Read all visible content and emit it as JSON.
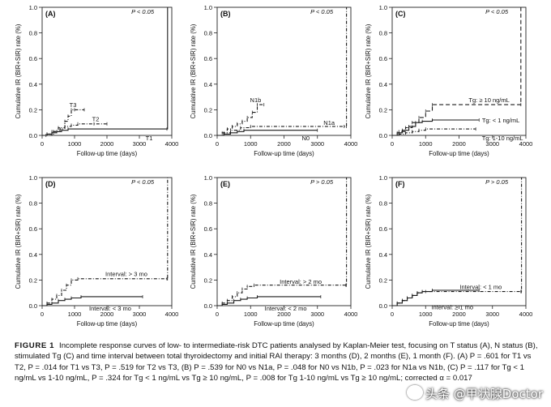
{
  "figure": {
    "caption_label": "FIGURE 1",
    "caption_text": "Incomplete response curves of low- to intermediate-risk DTC patients analysed by Kaplan-Meier test, focusing on T status (A), N status (B), stimulated Tg (C) and time interval between total thyroidectomy and initial RAI therapy: 3 months (D), 2 months (E), 1 month (F). (A) P = .601 for T1 vs T2, P = .014 for T1 vs T3, P = .519 for T2 vs T3, (B) P = .539 for N0 vs N1a, P = .048 for N0 vs N1b, P = .023 for N1a vs N1b, (C) P = .117 for Tg < 1 ng/mL vs 1-10 ng/mL, P = .324 for Tg < 1 ng/mL vs Tg ≥ 10 ng/mL, P = .008 for Tg 1-10 ng/mL vs Tg ≥ 10 ng/mL; corrected α = 0.017",
    "watermark": "头条 @甲状腺Doctor"
  },
  "chart_data": [
    {
      "type": "line",
      "panel": "(A)",
      "pvalue": "P < 0.05",
      "xlabel": "Follow-up time (days)",
      "ylabel": "Cumulative IR (BIR+SIR) rate (%)",
      "xlim": [
        0,
        4000
      ],
      "ylim": [
        0,
        1.0
      ],
      "xticks": [
        "0",
        "1000",
        "2000",
        "3000",
        "4000"
      ],
      "yticks": [
        "0.0",
        "0.2",
        "0.4",
        "0.6",
        "0.8",
        "1.0"
      ],
      "series": [
        {
          "name": "T3",
          "style": "dash-dot",
          "label_at": [
            950,
            0.24
          ],
          "x": [
            0,
            120,
            300,
            500,
            700,
            800,
            900,
            1000,
            1300
          ],
          "y": [
            0,
            0,
            0.03,
            0.06,
            0.11,
            0.15,
            0.2,
            0.2,
            0.2
          ]
        },
        {
          "name": "T2",
          "style": "dash-dot",
          "label_at": [
            1650,
            0.13
          ],
          "x": [
            0,
            150,
            350,
            550,
            700,
            900,
            1100,
            1600,
            2000
          ],
          "y": [
            0,
            0.01,
            0.03,
            0.05,
            0.07,
            0.08,
            0.09,
            0.09,
            0.09
          ]
        },
        {
          "name": "T1",
          "style": "solid",
          "label_at": [
            3300,
            -0.02
          ],
          "x": [
            0,
            150,
            300,
            450,
            600,
            800,
            3850,
            3870
          ],
          "y": [
            0,
            0.01,
            0.02,
            0.03,
            0.04,
            0.05,
            0.05,
            1.0
          ]
        }
      ]
    },
    {
      "type": "line",
      "panel": "(B)",
      "pvalue": "P < 0.05",
      "xlabel": "Follow-up time (days)",
      "ylabel": "Cumulative IR (BIR+SIR) rate (%)",
      "xlim": [
        0,
        4000
      ],
      "ylim": [
        0,
        1.0
      ],
      "xticks": [
        "0",
        "1000",
        "2000",
        "3000",
        "4000"
      ],
      "yticks": [
        "0.0",
        "0.2",
        "0.4",
        "0.6",
        "0.8",
        "1.0"
      ],
      "series": [
        {
          "name": "N1b",
          "style": "dash-dot",
          "label_at": [
            1150,
            0.28
          ],
          "x": [
            0,
            150,
            300,
            450,
            600,
            750,
            900,
            1050,
            1200,
            1400
          ],
          "y": [
            0,
            0.02,
            0.05,
            0.07,
            0.09,
            0.11,
            0.14,
            0.18,
            0.24,
            0.24
          ]
        },
        {
          "name": "N1a",
          "style": "dash-dot",
          "label_at": [
            3350,
            0.1
          ],
          "x": [
            0,
            200,
            400,
            700,
            1000,
            3800,
            3870,
            3870
          ],
          "y": [
            0,
            0.02,
            0.04,
            0.06,
            0.07,
            0.07,
            0.07,
            1.0
          ]
        },
        {
          "name": "N0",
          "style": "solid",
          "label_at": [
            2650,
            -0.02
          ],
          "x": [
            0,
            200,
            400,
            600,
            800,
            3000
          ],
          "y": [
            0,
            0.01,
            0.02,
            0.03,
            0.04,
            0.04
          ]
        }
      ]
    },
    {
      "type": "line",
      "panel": "(C)",
      "pvalue": "P < 0.05",
      "xlabel": "Follow-up time (days)",
      "ylabel": "Cumulative IR (BIR+SIR) rate (%)",
      "xlim": [
        0,
        4000
      ],
      "ylim": [
        0,
        1.0
      ],
      "xticks": [
        "0",
        "1000",
        "2000",
        "3000",
        "4000"
      ],
      "yticks": [
        "0.0",
        "0.2",
        "0.4",
        "0.6",
        "0.8",
        "1.0"
      ],
      "series": [
        {
          "name": "Tg: ≥ 10 ng/mL",
          "style": "dashed",
          "label_at": [
            2900,
            0.28
          ],
          "x": [
            0,
            200,
            400,
            600,
            800,
            1000,
            1200,
            3850,
            3850
          ],
          "y": [
            0,
            0.03,
            0.06,
            0.1,
            0.14,
            0.19,
            0.24,
            0.24,
            1.0
          ]
        },
        {
          "name": "Tg: < 1 ng/mL",
          "style": "solid",
          "label_at": [
            3250,
            0.12
          ],
          "x": [
            0,
            150,
            300,
            500,
            700,
            900,
            1200,
            2600
          ],
          "y": [
            0,
            0.02,
            0.04,
            0.07,
            0.1,
            0.11,
            0.12,
            0.12
          ]
        },
        {
          "name": "Tg: 1-10 ng/mL",
          "style": "dash-dot",
          "label_at": [
            3300,
            -0.02
          ],
          "x": [
            0,
            200,
            400,
            600,
            800,
            1000,
            2500
          ],
          "y": [
            0,
            0.01,
            0.02,
            0.03,
            0.04,
            0.05,
            0.05
          ]
        }
      ]
    },
    {
      "type": "line",
      "panel": "(D)",
      "pvalue": "P < 0.05",
      "xlabel": "Follow-up time (days)",
      "ylabel": "Cumulative IR (BIR+SIR) rate (%)",
      "xlim": [
        0,
        4000
      ],
      "ylim": [
        0,
        1.0
      ],
      "xticks": [
        "0",
        "1000",
        "2000",
        "3000",
        "4000"
      ],
      "yticks": [
        "0.0",
        "0.2",
        "0.4",
        "0.6",
        "0.8",
        "1.0"
      ],
      "series": [
        {
          "name": "Interval: > 3 mo",
          "style": "dash-dot",
          "label_at": [
            2600,
            0.25
          ],
          "x": [
            0,
            150,
            300,
            450,
            600,
            750,
            900,
            1100,
            3850,
            3870,
            3870
          ],
          "y": [
            0,
            0.02,
            0.05,
            0.08,
            0.12,
            0.16,
            0.2,
            0.21,
            0.21,
            0.21,
            1.0
          ]
        },
        {
          "name": "Interval: < 3 mo",
          "style": "solid",
          "label_at": [
            2100,
            -0.02
          ],
          "x": [
            0,
            150,
            300,
            500,
            700,
            900,
            1200,
            3100
          ],
          "y": [
            0,
            0.01,
            0.02,
            0.04,
            0.05,
            0.06,
            0.07,
            0.07
          ]
        }
      ]
    },
    {
      "type": "line",
      "panel": "(E)",
      "pvalue": "P > 0.05",
      "xlabel": "Follow-up time (days)",
      "ylabel": "Cumulative IR (BIR+SIR) rate (%)",
      "xlim": [
        0,
        4000
      ],
      "ylim": [
        0,
        1.0
      ],
      "xticks": [
        "0",
        "1000",
        "2000",
        "3000",
        "4000"
      ],
      "yticks": [
        "0.0",
        "0.2",
        "0.4",
        "0.6",
        "0.8",
        "1.0"
      ],
      "series": [
        {
          "name": "Interval: > 2 mo",
          "style": "dash-dot",
          "label_at": [
            2500,
            0.19
          ],
          "x": [
            0,
            150,
            300,
            450,
            600,
            750,
            900,
            1100,
            3850,
            3870,
            3870
          ],
          "y": [
            0,
            0.02,
            0.04,
            0.07,
            0.1,
            0.13,
            0.15,
            0.16,
            0.16,
            0.16,
            1.0
          ]
        },
        {
          "name": "Interval: < 2 mo",
          "style": "solid",
          "label_at": [
            2050,
            -0.02
          ],
          "x": [
            0,
            150,
            300,
            500,
            700,
            900,
            1200,
            3100
          ],
          "y": [
            0,
            0.01,
            0.02,
            0.04,
            0.05,
            0.06,
            0.07,
            0.07
          ]
        }
      ]
    },
    {
      "type": "line",
      "panel": "(F)",
      "pvalue": "P > 0.05",
      "xlabel": "Follow-up time (days)",
      "ylabel": "Cumulative IR (BIR+SIR) rate (%)",
      "xlim": [
        0,
        4000
      ],
      "ylim": [
        0,
        1.0
      ],
      "xticks": [
        "0",
        "1000",
        "2000",
        "3000",
        "4000"
      ],
      "yticks": [
        "0.0",
        "0.2",
        "0.4",
        "0.6",
        "0.8",
        "1.0"
      ],
      "series": [
        {
          "name": "Interval: < 1 mo",
          "style": "dash-dot",
          "label_at": [
            2650,
            0.15
          ],
          "x": [
            0,
            150,
            300,
            450,
            600,
            750,
            900,
            1000,
            3850,
            3870,
            3870
          ],
          "y": [
            0,
            0.02,
            0.04,
            0.06,
            0.08,
            0.1,
            0.11,
            0.11,
            0.11,
            0.11,
            1.0
          ]
        },
        {
          "name": "Interval: ≥ 1 mo",
          "style": "solid",
          "label_at": [
            1800,
            -0.01
          ],
          "x": [
            0,
            150,
            300,
            450,
            600,
            750,
            900,
            1200,
            2600
          ],
          "y": [
            0,
            0.02,
            0.04,
            0.06,
            0.08,
            0.1,
            0.11,
            0.12,
            0.12
          ]
        }
      ]
    }
  ]
}
